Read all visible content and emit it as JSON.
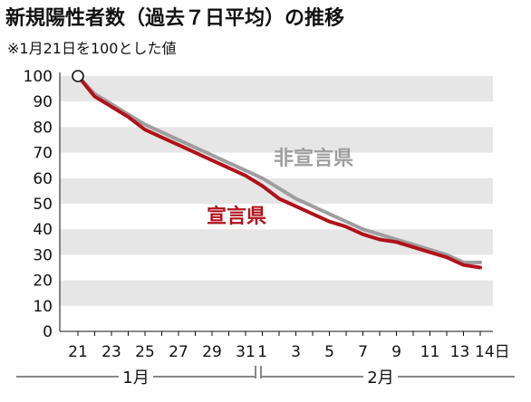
{
  "title": "新規陽性者数（過去７日平均）の推移",
  "subtitle": "※1月21日を100とした値",
  "colors": {
    "declared": "#b0121b",
    "non_declared": "#9e9e9e",
    "band": "#e6e6e6",
    "background": "#ffffff"
  },
  "chart_data": {
    "type": "line",
    "title": "新規陽性者数（過去７日平均）の推移",
    "subtitle": "※1月21日を100とした値",
    "xlabel": "",
    "ylabel": "",
    "ylim": [
      0,
      100
    ],
    "yticks": [
      0,
      10,
      20,
      30,
      40,
      50,
      60,
      70,
      80,
      90,
      100
    ],
    "grid": "horizontal-bands",
    "x": [
      "1/21",
      "1/22",
      "1/23",
      "1/24",
      "1/25",
      "1/26",
      "1/27",
      "1/28",
      "1/29",
      "1/30",
      "1/31",
      "2/1",
      "2/2",
      "2/3",
      "2/4",
      "2/5",
      "2/6",
      "2/7",
      "2/8",
      "2/9",
      "2/10",
      "2/11",
      "2/12",
      "2/13",
      "2/14"
    ],
    "xtick_labels": [
      "21",
      "23",
      "25",
      "27",
      "29",
      "31",
      "1",
      "3",
      "5",
      "7",
      "9",
      "11",
      "13",
      "14日"
    ],
    "months": [
      {
        "label": "1月",
        "from": "1/21",
        "to": "1/31"
      },
      {
        "label": "2月",
        "from": "2/1",
        "to": "2/14"
      }
    ],
    "series": [
      {
        "name": "非宣言県",
        "color": "#9e9e9e",
        "values": [
          100,
          93,
          89,
          85,
          81,
          78,
          75,
          72,
          69,
          66,
          63,
          60,
          56,
          52,
          49,
          46,
          43,
          40,
          38,
          36,
          34,
          32,
          30,
          27,
          27
        ]
      },
      {
        "name": "宣言県",
        "color": "#b0121b",
        "values": [
          100,
          92,
          88,
          84,
          79,
          76,
          73,
          70,
          67,
          64,
          61,
          57,
          52,
          49,
          46,
          43,
          41,
          38,
          36,
          35,
          33,
          31,
          29,
          26,
          25
        ]
      }
    ],
    "annotations": [
      {
        "text": "非宣言県",
        "series": "非宣言県"
      },
      {
        "text": "宣言県",
        "series": "宣言県"
      }
    ],
    "start_marker": {
      "x": "1/21",
      "y": 100
    }
  }
}
